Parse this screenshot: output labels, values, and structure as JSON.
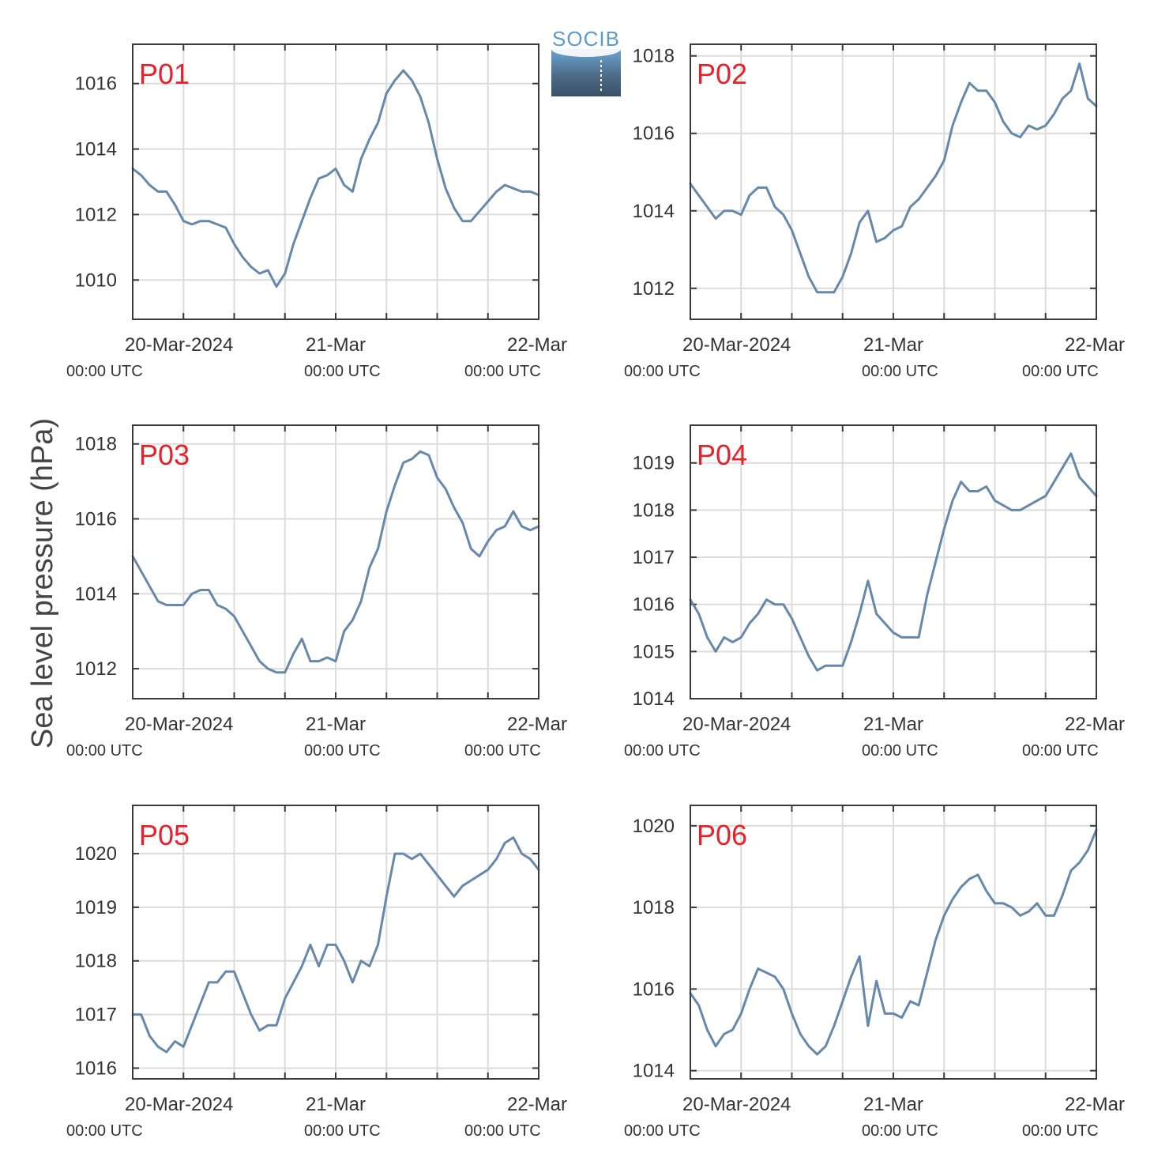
{
  "figure": {
    "ylabel": "Sea level pressure (hPa)",
    "logo_text": "SOCIB"
  },
  "colors": {
    "series": "#6688aa",
    "panel_label": "#e8202a",
    "logo": "#5b9cc9"
  },
  "x_axis": {
    "ticks": [
      {
        "main": "20-Mar-2024",
        "sub": "00:00 UTC"
      },
      {
        "main": "21-Mar",
        "sub": "00:00 UTC"
      },
      {
        "main": "22-Mar",
        "sub": "00:00 UTC"
      }
    ]
  },
  "chart_data": [
    {
      "type": "line",
      "label": "P01",
      "xlim": [
        0,
        48
      ],
      "ylim": [
        1008.8,
        1017.2
      ],
      "yticks": [
        1010,
        1012,
        1014,
        1016
      ],
      "x": [
        0,
        1,
        2,
        3,
        4,
        5,
        6,
        7,
        8,
        9,
        10,
        11,
        12,
        13,
        14,
        15,
        16,
        17,
        18,
        19,
        20,
        21,
        22,
        23,
        24,
        25,
        26,
        27,
        28,
        29,
        30,
        31,
        32,
        33,
        34,
        35,
        36,
        37,
        38,
        39,
        40,
        41,
        42,
        43,
        44,
        45,
        46,
        47,
        48
      ],
      "values": [
        1013.4,
        1013.2,
        1012.9,
        1012.7,
        1012.7,
        1012.3,
        1011.8,
        1011.7,
        1011.8,
        1011.8,
        1011.7,
        1011.6,
        1011.1,
        1010.7,
        1010.4,
        1010.2,
        1010.3,
        1009.8,
        1010.2,
        1011.1,
        1011.8,
        1012.5,
        1013.1,
        1013.2,
        1013.4,
        1012.9,
        1012.7,
        1013.7,
        1014.3,
        1014.8,
        1015.7,
        1016.1,
        1016.4,
        1016.1,
        1015.6,
        1014.8,
        1013.7,
        1012.8,
        1012.2,
        1011.8,
        1011.8,
        1012.1,
        1012.4,
        1012.7,
        1012.9,
        1012.8,
        1012.7,
        1012.7,
        1012.6
      ]
    },
    {
      "type": "line",
      "label": "P02",
      "xlim": [
        0,
        48
      ],
      "ylim": [
        1011.2,
        1018.3
      ],
      "yticks": [
        1012,
        1014,
        1016,
        1018
      ],
      "x": [
        0,
        1,
        2,
        3,
        4,
        5,
        6,
        7,
        8,
        9,
        10,
        11,
        12,
        13,
        14,
        15,
        16,
        17,
        18,
        19,
        20,
        21,
        22,
        23,
        24,
        25,
        26,
        27,
        28,
        29,
        30,
        31,
        32,
        33,
        34,
        35,
        36,
        37,
        38,
        39,
        40,
        41,
        42,
        43,
        44,
        45,
        46,
        47,
        48
      ],
      "values": [
        1014.7,
        1014.4,
        1014.1,
        1013.8,
        1014.0,
        1014.0,
        1013.9,
        1014.4,
        1014.6,
        1014.6,
        1014.1,
        1013.9,
        1013.5,
        1012.9,
        1012.3,
        1011.9,
        1011.9,
        1011.9,
        1012.3,
        1012.9,
        1013.7,
        1014.0,
        1013.2,
        1013.3,
        1013.5,
        1013.6,
        1014.1,
        1014.3,
        1014.6,
        1014.9,
        1015.3,
        1016.2,
        1016.8,
        1017.3,
        1017.1,
        1017.1,
        1016.8,
        1016.3,
        1016.0,
        1015.9,
        1016.2,
        1016.1,
        1016.2,
        1016.5,
        1016.9,
        1017.1,
        1017.8,
        1016.9,
        1016.7
      ]
    },
    {
      "type": "line",
      "label": "P03",
      "xlim": [
        0,
        48
      ],
      "ylim": [
        1011.2,
        1018.5
      ],
      "yticks": [
        1012,
        1014,
        1016,
        1018
      ],
      "x": [
        0,
        1,
        2,
        3,
        4,
        5,
        6,
        7,
        8,
        9,
        10,
        11,
        12,
        13,
        14,
        15,
        16,
        17,
        18,
        19,
        20,
        21,
        22,
        23,
        24,
        25,
        26,
        27,
        28,
        29,
        30,
        31,
        32,
        33,
        34,
        35,
        36,
        37,
        38,
        39,
        40,
        41,
        42,
        43,
        44,
        45,
        46,
        47,
        48
      ],
      "values": [
        1015.0,
        1014.6,
        1014.2,
        1013.8,
        1013.7,
        1013.7,
        1013.7,
        1014.0,
        1014.1,
        1014.1,
        1013.7,
        1013.6,
        1013.4,
        1013.0,
        1012.6,
        1012.2,
        1012.0,
        1011.9,
        1011.9,
        1012.4,
        1012.8,
        1012.2,
        1012.2,
        1012.3,
        1012.2,
        1013.0,
        1013.3,
        1013.8,
        1014.7,
        1015.2,
        1016.2,
        1016.9,
        1017.5,
        1017.6,
        1017.8,
        1017.7,
        1017.1,
        1016.8,
        1016.3,
        1015.9,
        1015.2,
        1015.0,
        1015.4,
        1015.7,
        1015.8,
        1016.2,
        1015.8,
        1015.7,
        1015.8
      ]
    },
    {
      "type": "line",
      "label": "P04",
      "xlim": [
        0,
        48
      ],
      "ylim": [
        1014.0,
        1019.8
      ],
      "yticks": [
        1014,
        1015,
        1016,
        1017,
        1018,
        1019
      ],
      "x": [
        0,
        1,
        2,
        3,
        4,
        5,
        6,
        7,
        8,
        9,
        10,
        11,
        12,
        13,
        14,
        15,
        16,
        17,
        18,
        19,
        20,
        21,
        22,
        23,
        24,
        25,
        26,
        27,
        28,
        29,
        30,
        31,
        32,
        33,
        34,
        35,
        36,
        37,
        38,
        39,
        40,
        41,
        42,
        43,
        44,
        45,
        46,
        47,
        48
      ],
      "values": [
        1016.1,
        1015.8,
        1015.3,
        1015.0,
        1015.3,
        1015.2,
        1015.3,
        1015.6,
        1015.8,
        1016.1,
        1016.0,
        1016.0,
        1015.7,
        1015.3,
        1014.9,
        1014.6,
        1014.7,
        1014.7,
        1014.7,
        1015.2,
        1015.8,
        1016.5,
        1015.8,
        1015.6,
        1015.4,
        1015.3,
        1015.3,
        1015.3,
        1016.2,
        1016.9,
        1017.6,
        1018.2,
        1018.6,
        1018.4,
        1018.4,
        1018.5,
        1018.2,
        1018.1,
        1018.0,
        1018.0,
        1018.1,
        1018.2,
        1018.3,
        1018.6,
        1018.9,
        1019.2,
        1018.7,
        1018.5,
        1018.3
      ]
    },
    {
      "type": "line",
      "label": "P05",
      "xlim": [
        0,
        48
      ],
      "ylim": [
        1015.8,
        1020.9
      ],
      "yticks": [
        1016,
        1017,
        1018,
        1019,
        1020
      ],
      "x": [
        0,
        1,
        2,
        3,
        4,
        5,
        6,
        7,
        8,
        9,
        10,
        11,
        12,
        13,
        14,
        15,
        16,
        17,
        18,
        19,
        20,
        21,
        22,
        23,
        24,
        25,
        26,
        27,
        28,
        29,
        30,
        31,
        32,
        33,
        34,
        35,
        36,
        37,
        38,
        39,
        40,
        41,
        42,
        43,
        44,
        45,
        46,
        47,
        48
      ],
      "values": [
        1017.0,
        1017.0,
        1016.6,
        1016.4,
        1016.3,
        1016.5,
        1016.4,
        1016.8,
        1017.2,
        1017.6,
        1017.6,
        1017.8,
        1017.8,
        1017.4,
        1017.0,
        1016.7,
        1016.8,
        1016.8,
        1017.3,
        1017.6,
        1017.9,
        1018.3,
        1017.9,
        1018.3,
        1018.3,
        1018.0,
        1017.6,
        1018.0,
        1017.9,
        1018.3,
        1019.2,
        1020.0,
        1020.0,
        1019.9,
        1020.0,
        1019.8,
        1019.6,
        1019.4,
        1019.2,
        1019.4,
        1019.5,
        1019.6,
        1019.7,
        1019.9,
        1020.2,
        1020.3,
        1020.0,
        1019.9,
        1019.7
      ]
    },
    {
      "type": "line",
      "label": "P06",
      "xlim": [
        0,
        48
      ],
      "ylim": [
        1013.8,
        1020.5
      ],
      "yticks": [
        1014,
        1016,
        1018,
        1020
      ],
      "x": [
        0,
        1,
        2,
        3,
        4,
        5,
        6,
        7,
        8,
        9,
        10,
        11,
        12,
        13,
        14,
        15,
        16,
        17,
        18,
        19,
        20,
        21,
        22,
        23,
        24,
        25,
        26,
        27,
        28,
        29,
        30,
        31,
        32,
        33,
        34,
        35,
        36,
        37,
        38,
        39,
        40,
        41,
        42,
        43,
        44,
        45,
        46,
        47,
        48
      ],
      "values": [
        1015.9,
        1015.6,
        1015.0,
        1014.6,
        1014.9,
        1015.0,
        1015.4,
        1016.0,
        1016.5,
        1016.4,
        1016.3,
        1016.0,
        1015.4,
        1014.9,
        1014.6,
        1014.4,
        1014.6,
        1015.1,
        1015.7,
        1016.3,
        1016.8,
        1015.1,
        1016.2,
        1015.4,
        1015.4,
        1015.3,
        1015.7,
        1015.6,
        1016.4,
        1017.2,
        1017.8,
        1018.2,
        1018.5,
        1018.7,
        1018.8,
        1018.4,
        1018.1,
        1018.1,
        1018.0,
        1017.8,
        1017.9,
        1018.1,
        1017.8,
        1017.8,
        1018.3,
        1018.9,
        1019.1,
        1019.4,
        1019.9
      ]
    }
  ]
}
